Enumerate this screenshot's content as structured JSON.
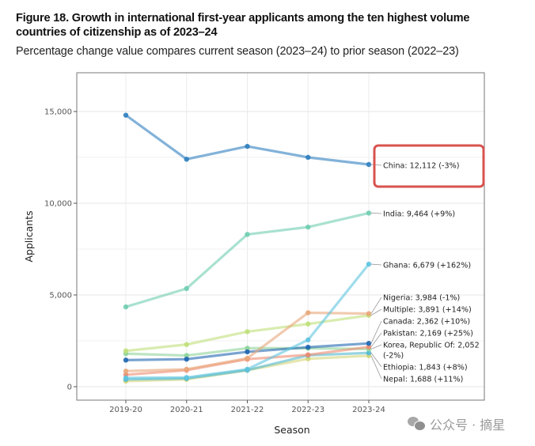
{
  "figure": {
    "title": "Figure 18. Growth in international first-year applicants among the ten highest volume countries of citizenship as of 2023–24",
    "subtitle": "Percentage change value compares current season (2023–24) to prior season (2022–23)"
  },
  "watermark": {
    "icon": "wechat-icon",
    "text": "公众号 · 摘星"
  },
  "highlight": {
    "target": "China",
    "color": "#d9534f"
  },
  "chart_data": {
    "type": "line",
    "title": "Figure 18. Growth in international first-year applicants among the ten highest volume countries of citizenship as of 2023–24",
    "subtitle": "Percentage change value compares current season (2023–24) to prior season (2022–23)",
    "xlabel": "Season",
    "ylabel": "Applicants",
    "categories": [
      "2019-20",
      "2020-21",
      "2021-22",
      "2022-23",
      "2023-24"
    ],
    "ylim": [
      -800,
      17000
    ],
    "yticks": [
      0,
      5000,
      10000,
      15000
    ],
    "ytick_labels": [
      "0",
      "5,000",
      "10,000",
      "15,000"
    ],
    "grid": true,
    "legend": "direct labels at right end of lines",
    "series": [
      {
        "name": "China",
        "label": "China: 12,112 (-3%)",
        "color": "#2f7fbf",
        "values": [
          14800,
          12400,
          13100,
          12500,
          12112
        ]
      },
      {
        "name": "India",
        "label": "India: 9,464 (+9%)",
        "color": "#6fcdb0",
        "values": [
          4350,
          5350,
          8300,
          8700,
          9464
        ]
      },
      {
        "name": "Ghana",
        "label": "Ghana: 6,679 (+162%)",
        "color": "#5ec4e0",
        "values": [
          480,
          500,
          950,
          2550,
          6679
        ]
      },
      {
        "name": "Nigeria",
        "label": "Nigeria: 3,984 (-1%)",
        "color": "#e8a77a",
        "values": [
          850,
          950,
          1550,
          4030,
          3984
        ]
      },
      {
        "name": "Multiple",
        "label": "Multiple: 3,891 (+14%)",
        "color": "#bfe07a",
        "values": [
          1950,
          2300,
          3000,
          3420,
          3891
        ]
      },
      {
        "name": "Canada",
        "label": "Canada: 2,362 (+10%)",
        "color": "#1f66b0",
        "values": [
          1450,
          1500,
          1900,
          2150,
          2362
        ]
      },
      {
        "name": "Pakistan",
        "label": "Pakistan: 2,169 (+25%)",
        "color": "#ee8a70",
        "values": [
          650,
          900,
          1500,
          1735,
          2169
        ]
      },
      {
        "name": "Korea, Republic Of",
        "label": "Korea, Republic Of: 2,052 (-2%)",
        "color": "#8fd49a",
        "values": [
          1800,
          1700,
          2100,
          2095,
          2052
        ]
      },
      {
        "name": "Ethiopia",
        "label": "Ethiopia: 1,843 (+8%)",
        "color": "#52b8cf",
        "values": [
          400,
          450,
          900,
          1710,
          1843
        ]
      },
      {
        "name": "Nepal",
        "label": "Nepal: 1,688 (+11%)",
        "color": "#d3d67a",
        "values": [
          300,
          400,
          900,
          1520,
          1688
        ]
      }
    ],
    "label_lines": [
      "China: 12,112 (-3%)",
      "India: 9,464 (+9%)",
      "Ghana: 6,679 (+162%)",
      "Nigeria: 3,984 (-1%)",
      "Multiple: 3,891 (+14%)",
      "Canada: 2,362 (+10%)",
      "Pakistan: 2,169 (+25%)",
      "Korea, Republic Of: 2,052",
      "(-2%)",
      "Ethiopia: 1,843 (+8%)",
      "Nepal: 1,688 (+11%)"
    ]
  }
}
